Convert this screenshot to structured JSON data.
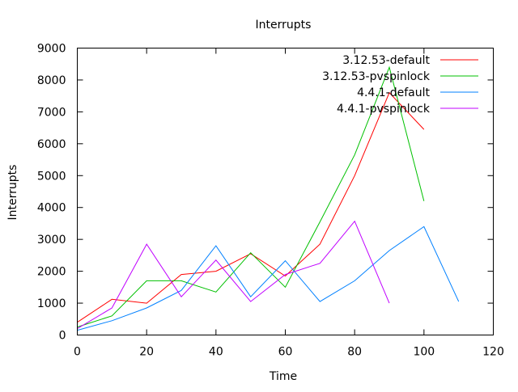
{
  "chart_data": {
    "type": "line",
    "title": "Interrupts",
    "xlabel": "Time",
    "ylabel": "Interrupts",
    "xlim": [
      0,
      120
    ],
    "ylim": [
      0,
      9000
    ],
    "xticks": [
      0,
      20,
      40,
      60,
      80,
      100,
      120
    ],
    "yticks": [
      0,
      1000,
      2000,
      3000,
      4000,
      5000,
      6000,
      7000,
      8000,
      9000
    ],
    "grid": false,
    "legend_position": "top-right",
    "series": [
      {
        "name": "3.12.53-default",
        "color": "#ff0000",
        "x": [
          0,
          10,
          20,
          30,
          40,
          50,
          60,
          70,
          80,
          90,
          100
        ],
        "y": [
          400,
          1120,
          1000,
          1900,
          2000,
          2550,
          1850,
          2850,
          5000,
          7600,
          6450
        ]
      },
      {
        "name": "3.12.53-pvspinlock",
        "color": "#00c000",
        "x": [
          0,
          10,
          20,
          30,
          40,
          50,
          60,
          70,
          80,
          90,
          100
        ],
        "y": [
          250,
          600,
          1700,
          1700,
          1350,
          2580,
          1500,
          3550,
          5650,
          8400,
          4200
        ]
      },
      {
        "name": "4.4.1-default",
        "color": "#0080ff",
        "x": [
          0,
          10,
          20,
          30,
          40,
          50,
          60,
          70,
          80,
          90,
          100,
          110
        ],
        "y": [
          150,
          450,
          850,
          1400,
          2800,
          1200,
          2330,
          1050,
          1700,
          2650,
          3400,
          1050
        ]
      },
      {
        "name": "4.4.1-pvspinlock",
        "color": "#c000ff",
        "x": [
          0,
          10,
          20,
          30,
          40,
          50,
          60,
          70,
          80,
          90
        ],
        "y": [
          200,
          850,
          2850,
          1200,
          2350,
          1050,
          1900,
          2250,
          3570,
          1000
        ]
      }
    ]
  }
}
